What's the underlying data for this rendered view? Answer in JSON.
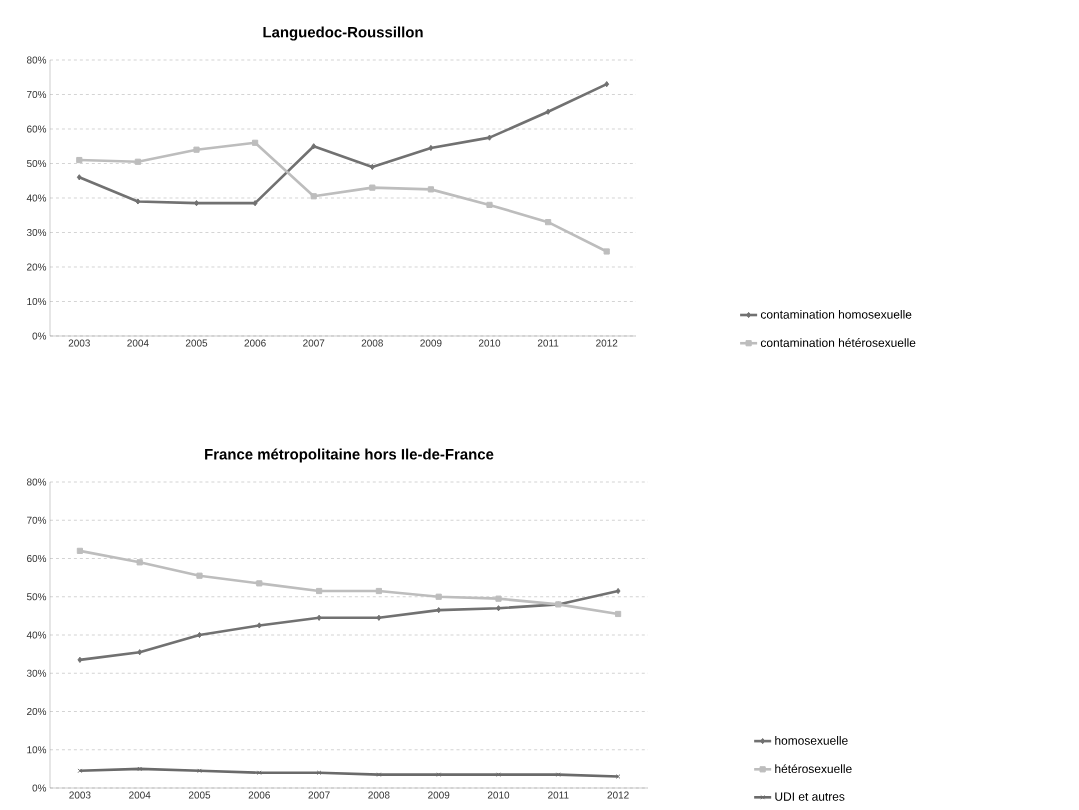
{
  "chart_data": [
    {
      "type": "line",
      "title": "Languedoc-Roussillon",
      "categories": [
        "2003",
        "2004",
        "2005",
        "2006",
        "2007",
        "2008",
        "2009",
        "2010",
        "2011",
        "2012"
      ],
      "series": [
        {
          "name": "contamination homosexuelle",
          "color": "#717171",
          "marker": "diamond",
          "values": [
            46,
            39,
            38.5,
            38.5,
            55,
            49,
            54.5,
            57.5,
            65,
            73
          ]
        },
        {
          "name": "contamination hétérosexuelle",
          "color": "#bdbdbd",
          "marker": "square",
          "values": [
            51,
            50.5,
            54,
            56,
            40.5,
            43,
            42.5,
            38,
            33,
            24.5
          ]
        }
      ],
      "ylim": [
        0,
        80
      ],
      "yticks": [
        {
          "value": 0,
          "label": "0%"
        },
        {
          "value": 10,
          "label": "10%"
        },
        {
          "value": 20,
          "label": "20%"
        },
        {
          "value": 30,
          "label": "30%"
        },
        {
          "value": 40,
          "label": "40%"
        },
        {
          "value": 50,
          "label": "50%"
        },
        {
          "value": 60,
          "label": "60%"
        },
        {
          "value": 70,
          "label": "70%"
        },
        {
          "value": 80,
          "label": "80%"
        }
      ],
      "grid": "y",
      "legend": "right",
      "line_style": "solid"
    },
    {
      "type": "line",
      "title": "France métropolitaine hors Ile-de-France",
      "categories": [
        "2003",
        "2004",
        "2005",
        "2006",
        "2007",
        "2008",
        "2009",
        "2010",
        "2011",
        "2012"
      ],
      "series": [
        {
          "name": "homosexuelle",
          "color": "#717171",
          "marker": "diamond",
          "values": [
            33.5,
            35.5,
            40,
            42.5,
            44.5,
            44.5,
            46.5,
            47,
            48,
            51.5
          ]
        },
        {
          "name": "hétérosexuelle",
          "color": "#bdbdbd",
          "marker": "square",
          "values": [
            62,
            59,
            55.5,
            53.5,
            51.5,
            51.5,
            50,
            49.5,
            48,
            45.5
          ]
        },
        {
          "name": "UDI et autres",
          "color": "#6a6a6a",
          "marker": "cross",
          "values": [
            4.5,
            5,
            4.5,
            4,
            4,
            3.5,
            3.5,
            3.5,
            3.5,
            3
          ]
        }
      ],
      "ylim": [
        0,
        80
      ],
      "yticks": [
        {
          "value": 0,
          "label": "0%"
        },
        {
          "value": 10,
          "label": "10%"
        },
        {
          "value": 20,
          "label": "20%"
        },
        {
          "value": 30,
          "label": "30%"
        },
        {
          "value": 40,
          "label": "40%"
        },
        {
          "value": 50,
          "label": "50%"
        },
        {
          "value": 60,
          "label": "60%"
        },
        {
          "value": 70,
          "label": "70%"
        },
        {
          "value": 80,
          "label": "80%"
        }
      ],
      "grid": "y",
      "legend": "right",
      "line_style": "solid"
    }
  ]
}
